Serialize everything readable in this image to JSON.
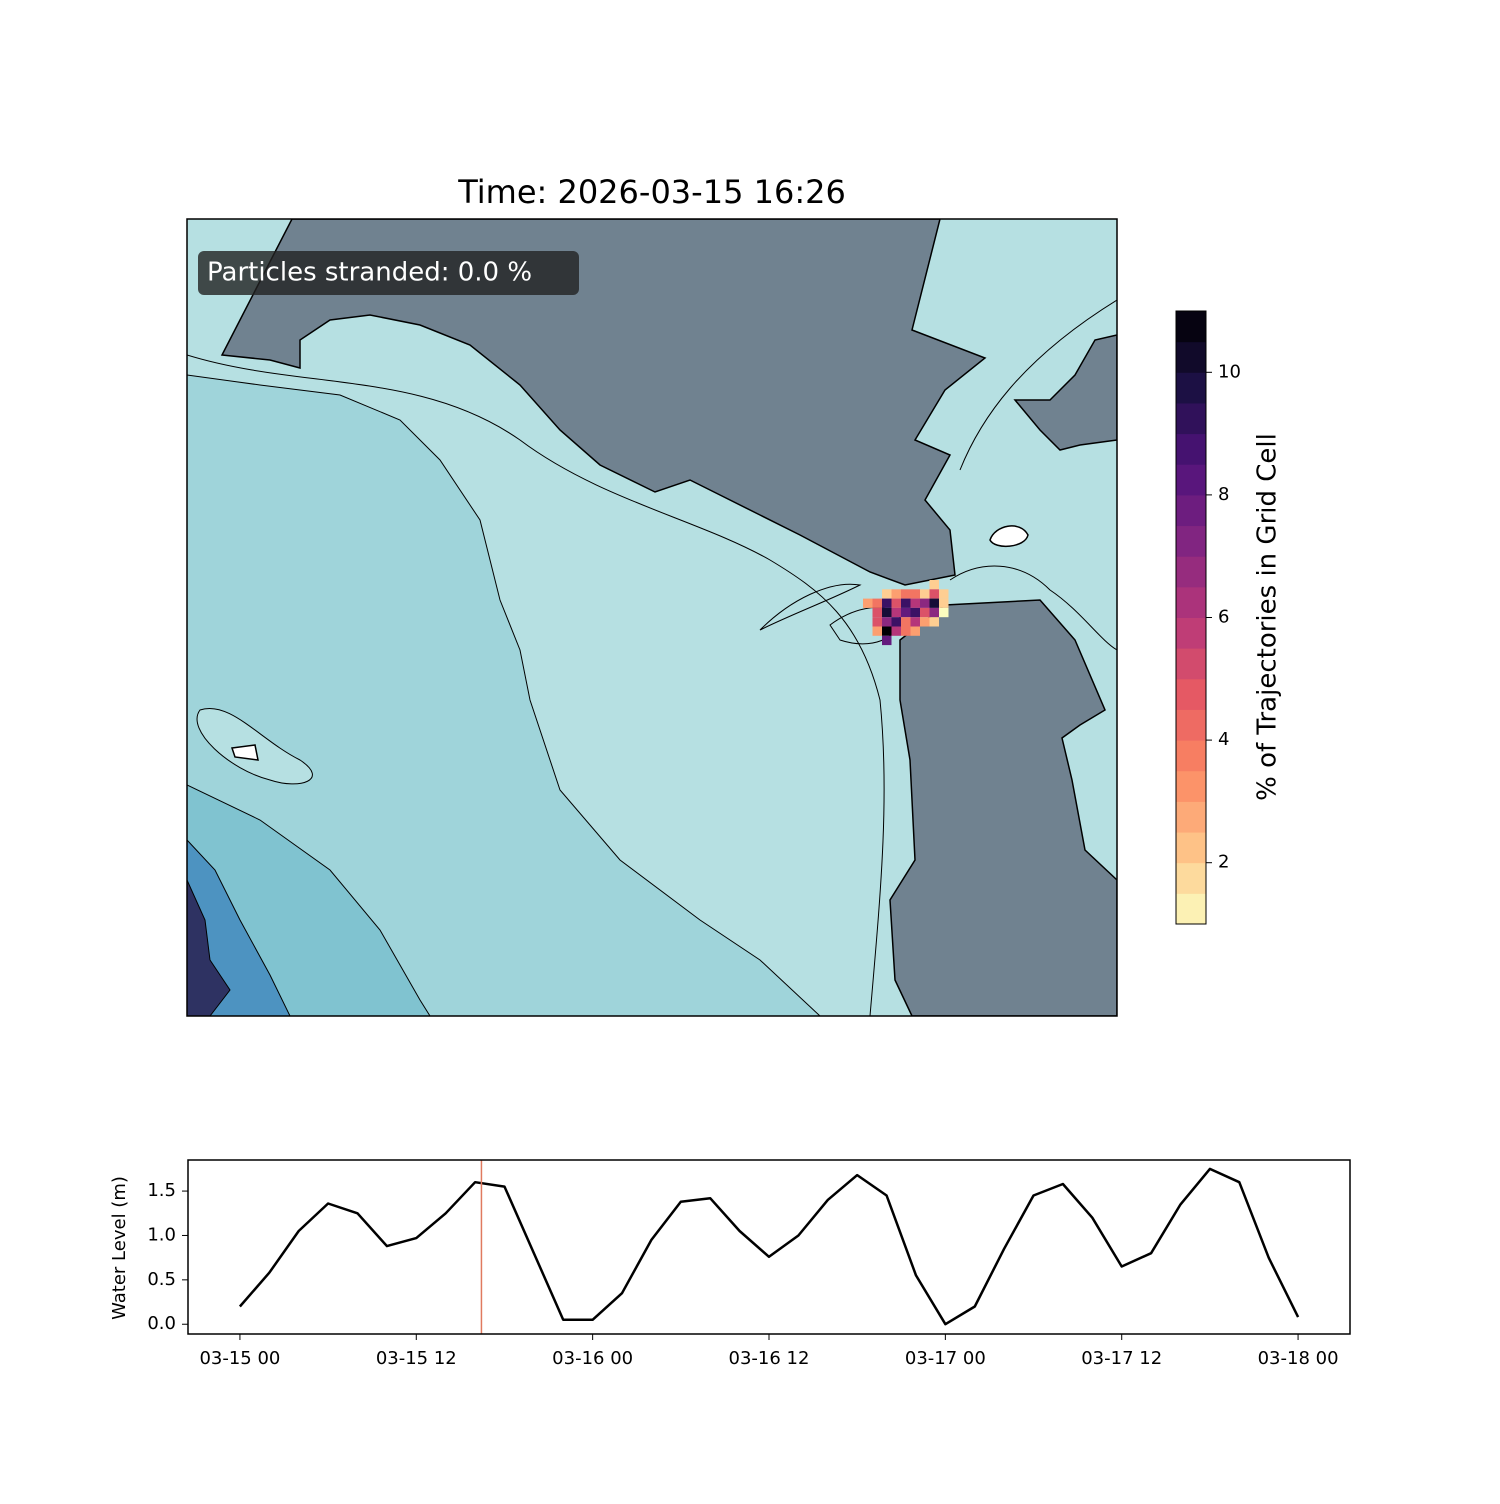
{
  "chart_data": [
    {
      "type": "heatmap",
      "title": "Time: 2026-03-15 16:26",
      "annotation": "Particles stranded: 0.0 %",
      "values": [
        [
          null,
          null,
          null,
          null,
          null,
          null,
          null,
          2,
          null
        ],
        [
          null,
          null,
          2,
          3,
          4,
          4,
          2,
          5,
          2
        ],
        [
          3,
          4,
          9,
          5,
          9,
          6,
          7,
          10,
          2
        ],
        [
          null,
          5,
          10,
          6,
          8,
          9,
          5,
          7,
          1
        ],
        [
          null,
          5,
          7,
          9,
          4,
          6,
          3,
          2,
          null
        ],
        [
          null,
          3,
          11,
          6,
          4,
          3,
          null,
          null,
          null
        ],
        [
          null,
          null,
          8,
          null,
          null,
          null,
          null,
          null,
          null
        ]
      ],
      "colorbar": {
        "label": "% of Trajectories in Grid Cell",
        "lim": [
          1.0,
          11.0
        ],
        "ticks": [
          2,
          4,
          6,
          8,
          10
        ],
        "n_levels": 20,
        "colormap": [
          "#fcfdbf",
          "#fec287",
          "#fb8761",
          "#e55964",
          "#b5367a",
          "#812581",
          "#4f127b",
          "#1c1044",
          "#000004"
        ]
      }
    },
    {
      "type": "line",
      "ylabel": "Water Level (m)",
      "x": [
        "03-15 00",
        "03-15 02",
        "03-15 04",
        "03-15 06",
        "03-15 08",
        "03-15 10",
        "03-15 12",
        "03-15 14",
        "03-15 16",
        "03-15 18",
        "03-15 20",
        "03-15 22",
        "03-16 00",
        "03-16 02",
        "03-16 04",
        "03-16 06",
        "03-16 08",
        "03-16 10",
        "03-16 12",
        "03-16 14",
        "03-16 16",
        "03-16 18",
        "03-16 20",
        "03-16 22",
        "03-17 00",
        "03-17 02",
        "03-17 04",
        "03-17 06",
        "03-17 08",
        "03-17 10",
        "03-17 12",
        "03-17 14",
        "03-17 16",
        "03-17 18",
        "03-17 20",
        "03-17 22",
        "03-18 00"
      ],
      "values": [
        0.2,
        0.58,
        1.05,
        1.36,
        1.25,
        0.88,
        0.97,
        1.25,
        1.6,
        1.55,
        0.8,
        0.05,
        0.05,
        0.35,
        0.95,
        1.38,
        1.42,
        1.05,
        0.76,
        1.0,
        1.4,
        1.68,
        1.45,
        0.55,
        0.0,
        0.2,
        0.85,
        1.45,
        1.58,
        1.2,
        0.65,
        0.8,
        1.35,
        1.75,
        1.6,
        0.75,
        0.08
      ],
      "color": "#000000",
      "xlim": [
        "03-14 20:28",
        "03-18 03:32"
      ],
      "xticks": [
        "03-15 00",
        "03-15 12",
        "03-16 00",
        "03-16 12",
        "03-17 00",
        "03-17 12",
        "03-18 00"
      ],
      "ylim": [
        -0.11,
        1.85
      ],
      "yticks": [
        {
          "value": 0.0,
          "label": "0.0"
        },
        0.5,
        {
          "value": 1.0,
          "label": "1.0"
        },
        1.5
      ],
      "marker_x": "03-15 16:26",
      "marker_color": "#e07a5f"
    }
  ]
}
